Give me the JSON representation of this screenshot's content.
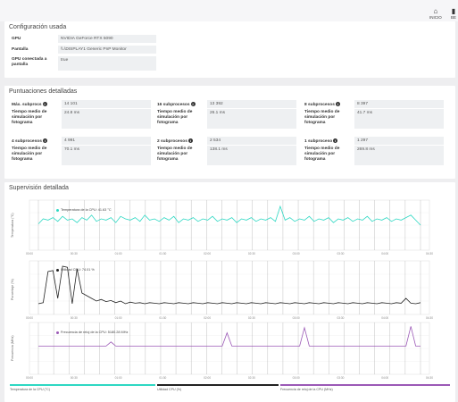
{
  "nav": {
    "inicio": "INICIO",
    "bench": "BE"
  },
  "config": {
    "title": "Configuración usada",
    "rows": [
      {
        "key": "GPU",
        "value": "NVIDIA GeForce RTX 5090"
      },
      {
        "key": "Pantalla",
        "value": "\\\\.\\DISPLAY1 Generic PnP Monitor"
      },
      {
        "key": "GPU conectada a pantalla",
        "value": "true"
      }
    ]
  },
  "scores": {
    "title": "Puntuaciones detalladas",
    "blocks": [
      {
        "label": "Máx. subprocs",
        "score": "14 101",
        "time_label": "Tiempo medio de simulación por fotograma",
        "time": "24.8 ms"
      },
      {
        "label": "16 subprocesos",
        "score": "13 392",
        "time_label": "Tiempo medio de simulación por fotograma",
        "time": "26.1 ms"
      },
      {
        "label": "8 subprocesos",
        "score": "8 397",
        "time_label": "Tiempo medio de simulación por fotograma",
        "time": "41.7 ms"
      },
      {
        "label": "4 subprocesos",
        "score": "4 991",
        "time_label": "Tiempo medio de simulación por fotograma",
        "time": "70.1 ms"
      },
      {
        "label": "2 subprocesos",
        "score": "2 534",
        "time_label": "Tiempo medio de simulación por fotograma",
        "time": "138.1 ms"
      },
      {
        "label": "1 subproceso",
        "score": "1 297",
        "time_label": "Tiempo medio de simulación por fotograma",
        "time": "269.8 ms"
      }
    ]
  },
  "monitoring": {
    "title": "Supervisión detallada",
    "markers": {
      "temp": "Temperatura de la CPU: 41.63 °C",
      "util": "Utilidad CPU: 74.01 %",
      "freq": "Frecuencia de reloj de la CPU: 5180.28 MHz"
    },
    "legend": [
      "Temperatura de la CPU (°C)",
      "Utilidad CPU (%)",
      "Frecuencia de reloj de la CPU (MHz)"
    ],
    "colors": {
      "temp": "#2ed8c3",
      "util": "#222222",
      "freq": "#9b59b6"
    }
  },
  "chart_data": [
    {
      "type": "line",
      "ylabel": "Temperatura (°C)",
      "series": [
        {
          "name": "Temperatura de la CPU (°C)",
          "values": [
            41,
            45,
            44,
            46,
            43,
            47,
            44,
            45,
            42,
            46,
            44,
            48,
            43,
            45,
            44,
            46,
            42,
            47,
            45,
            44,
            46,
            43,
            48,
            44,
            45,
            43,
            46,
            44,
            47,
            42,
            45,
            44,
            46,
            43,
            45,
            44,
            47,
            43,
            45,
            44,
            46,
            42,
            45,
            44,
            46,
            43,
            45,
            44,
            46,
            43,
            55,
            44,
            46,
            43,
            45,
            44,
            47,
            43,
            45,
            44,
            46,
            42,
            45,
            44,
            46,
            43,
            45,
            44,
            47,
            43,
            45,
            44,
            46,
            43,
            45,
            44,
            46,
            48,
            44,
            40
          ]
        }
      ],
      "ylim": [
        20,
        60
      ],
      "xticks": [
        "00:00",
        "00:30",
        "01:00",
        "01:30",
        "02:00",
        "02:30",
        "03:00",
        "03:30",
        "04:00",
        "04:30"
      ]
    },
    {
      "type": "line",
      "ylabel": "Porcentaje (%)",
      "series": [
        {
          "name": "Utilidad CPU (%)",
          "values": [
            20,
            22,
            80,
            82,
            30,
            90,
            88,
            20,
            85,
            40,
            35,
            30,
            25,
            28,
            24,
            26,
            22,
            25,
            20,
            23,
            21,
            22,
            20,
            22,
            21,
            20,
            22,
            21,
            20,
            22,
            21,
            20,
            22,
            21,
            20,
            22,
            21,
            20,
            22,
            21,
            20,
            22,
            21,
            20,
            22,
            21,
            20,
            22,
            21,
            20,
            22,
            21,
            20,
            22,
            21,
            20,
            22,
            21,
            20,
            22,
            21,
            20,
            22,
            21,
            20,
            22,
            21,
            20,
            22,
            21,
            20,
            22,
            21,
            20,
            22,
            21,
            30,
            21,
            20,
            22
          ]
        }
      ],
      "ylim": [
        0,
        100
      ],
      "xticks": [
        "00:00",
        "00:30",
        "01:00",
        "01:30",
        "02:00",
        "02:30",
        "03:00",
        "03:30",
        "04:00",
        "04:30"
      ]
    },
    {
      "type": "line",
      "ylabel": "Frecuencia (MHz)",
      "series": [
        {
          "name": "Frecuencia de reloj de la CPU (MHz)",
          "values": [
            5180,
            5180,
            5180,
            5180,
            5180,
            5180,
            5180,
            5180,
            5180,
            5180,
            5180,
            5180,
            5180,
            5180,
            5180,
            5500,
            5180,
            5180,
            5180,
            5180,
            5180,
            5180,
            5180,
            5180,
            5180,
            5180,
            5180,
            5180,
            5180,
            5180,
            5180,
            5180,
            5180,
            5180,
            5180,
            5180,
            5180,
            5180,
            5180,
            6200,
            5180,
            5180,
            5180,
            5180,
            5180,
            5180,
            5180,
            5180,
            5180,
            5180,
            5180,
            5180,
            5180,
            5180,
            5180,
            6600,
            5180,
            5180,
            5180,
            5180,
            5180,
            5180,
            5180,
            5180,
            5180,
            5180,
            5180,
            5180,
            5180,
            5180,
            5180,
            5180,
            5180,
            5180,
            5180,
            5180,
            5180,
            6700,
            5180,
            5180
          ]
        }
      ],
      "ylim": [
        3000,
        7000
      ],
      "xticks": [
        "00:00",
        "00:30",
        "01:00",
        "01:30",
        "02:00",
        "02:30",
        "03:00",
        "03:30",
        "04:00",
        "04:30"
      ]
    }
  ]
}
